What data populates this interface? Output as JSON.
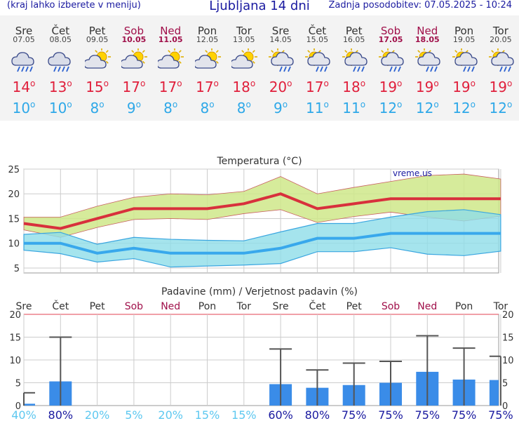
{
  "header": {
    "left_note": "(kraj lahko izberete v meniju)",
    "title": "Ljubljana 14 dni",
    "updated": "Zadnja posodobitev: 07.05.2025 - 10:24"
  },
  "days": [
    {
      "name": "Sre",
      "date": "07.05",
      "weekend": false,
      "icon": "rain-cloud-icon",
      "tmax": "14",
      "tmin": "10"
    },
    {
      "name": "Čet",
      "date": "08.05",
      "weekend": false,
      "icon": "rain-cloud-icon",
      "tmax": "13",
      "tmin": "10"
    },
    {
      "name": "Pet",
      "date": "09.05",
      "weekend": false,
      "icon": "sun-cloud-icon",
      "tmax": "15",
      "tmin": "8"
    },
    {
      "name": "Sob",
      "date": "10.05",
      "weekend": true,
      "icon": "sun-cloud-icon",
      "tmax": "17",
      "tmin": "9"
    },
    {
      "name": "Ned",
      "date": "11.05",
      "weekend": true,
      "icon": "sun-cloud-icon",
      "tmax": "17",
      "tmin": "8"
    },
    {
      "name": "Pon",
      "date": "12.05",
      "weekend": false,
      "icon": "sun-cloud-icon",
      "tmax": "17",
      "tmin": "8"
    },
    {
      "name": "Tor",
      "date": "13.05",
      "weekend": false,
      "icon": "sun-cloud-icon",
      "tmax": "18",
      "tmin": "8"
    },
    {
      "name": "Sre",
      "date": "14.05",
      "weekend": false,
      "icon": "sun-rain-icon",
      "tmax": "20",
      "tmin": "9"
    },
    {
      "name": "Čet",
      "date": "15.05",
      "weekend": false,
      "icon": "sun-rain-icon",
      "tmax": "17",
      "tmin": "11"
    },
    {
      "name": "Pet",
      "date": "16.05",
      "weekend": false,
      "icon": "sun-rain-icon",
      "tmax": "18",
      "tmin": "11"
    },
    {
      "name": "Sob",
      "date": "17.05",
      "weekend": true,
      "icon": "sun-rain-icon",
      "tmax": "19",
      "tmin": "12"
    },
    {
      "name": "Ned",
      "date": "18.05",
      "weekend": true,
      "icon": "sun-rain-icon",
      "tmax": "19",
      "tmin": "12"
    },
    {
      "name": "Pon",
      "date": "19.05",
      "weekend": false,
      "icon": "sun-rain-icon",
      "tmax": "19",
      "tmin": "12"
    },
    {
      "name": "Tor",
      "date": "20.05",
      "weekend": false,
      "icon": "sun-rain-icon",
      "tmax": "19",
      "tmin": "12"
    }
  ],
  "colors": {
    "title": "#1a1aa0",
    "weekend": "#a0104a",
    "tmax": "#e0203c",
    "tmin": "#2ea8e8",
    "tmax_band": "#cfe88a",
    "tmin_band": "#8fdde8",
    "precip_bar": "#3a8ce8",
    "prob_high": "#1a1aa0",
    "prob_low": "#5ec8f0"
  },
  "chart_data": [
    {
      "type": "line",
      "title": "Temperatura (°C)",
      "watermark": "vreme.us",
      "categories": [
        "Sre",
        "Čet",
        "Pet",
        "Sob",
        "Ned",
        "Pon",
        "Tor",
        "Sre",
        "Čet",
        "Pet",
        "Sob",
        "Ned",
        "Pon",
        "Tor"
      ],
      "ylim": [
        4,
        25
      ],
      "yticks": [
        5,
        10,
        15,
        20,
        25
      ],
      "grid": true,
      "series": [
        {
          "values": [
            14,
            13,
            15,
            17,
            17,
            17,
            18,
            20,
            17,
            18,
            19,
            19,
            19,
            19
          ]
        },
        {
          "values": [
            10,
            10,
            8,
            9,
            8,
            8,
            8,
            9,
            11,
            11,
            12,
            12,
            12,
            12
          ]
        }
      ],
      "bands": [
        {
          "upper": [
            15.3,
            15.3,
            17.5,
            19.3,
            20,
            19.8,
            20.5,
            23.5,
            20,
            21.3,
            22.5,
            23.7,
            24,
            23
          ]
        },
        {
          "lower": [
            12.7,
            11.2,
            13.2,
            14.8,
            15,
            14.8,
            16,
            16.8,
            14.2,
            15.4,
            16.3,
            15.3,
            14.5,
            15.5
          ]
        },
        {
          "upper": [
            11.8,
            12.2,
            9.8,
            11.2,
            10.8,
            10.6,
            10.5,
            12.3,
            14,
            14,
            15.3,
            16.4,
            16.8,
            15.8
          ]
        },
        {
          "lower": [
            8.6,
            7.9,
            6.2,
            6.9,
            5.2,
            5.4,
            5.6,
            5.9,
            8.3,
            8.3,
            9.1,
            7.8,
            7.5,
            8.4
          ]
        }
      ]
    },
    {
      "type": "bar",
      "title": "Padavine (mm) / Verjetnost padavin (%)",
      "categories": [
        "Sre",
        "Čet",
        "Pet",
        "Sob",
        "Ned",
        "Pon",
        "Tor",
        "Sre",
        "Čet",
        "Pet",
        "Sob",
        "Ned",
        "Pon",
        "Tor"
      ],
      "ylim": [
        0,
        20
      ],
      "yticks": [
        0,
        5,
        10,
        15,
        20
      ],
      "grid": true,
      "series": [
        {
          "values": [
            0.4,
            5.3,
            0,
            0,
            0,
            0,
            0,
            4.7,
            3.9,
            4.5,
            5,
            7.4,
            5.7,
            5.6
          ]
        }
      ],
      "error_max": [
        2.8,
        15,
        0,
        0,
        0,
        0,
        0,
        12.4,
        7.8,
        9.3,
        9.7,
        15.3,
        12.6,
        10.8
      ],
      "probability": [
        "40%",
        "80%",
        "20%",
        "5%",
        "20%",
        "15%",
        "15%",
        "60%",
        "80%",
        "75%",
        "75%",
        "75%",
        "75%",
        "75%"
      ],
      "probability_values": [
        40,
        80,
        20,
        5,
        20,
        15,
        15,
        60,
        80,
        75,
        75,
        75,
        75,
        75
      ]
    }
  ]
}
